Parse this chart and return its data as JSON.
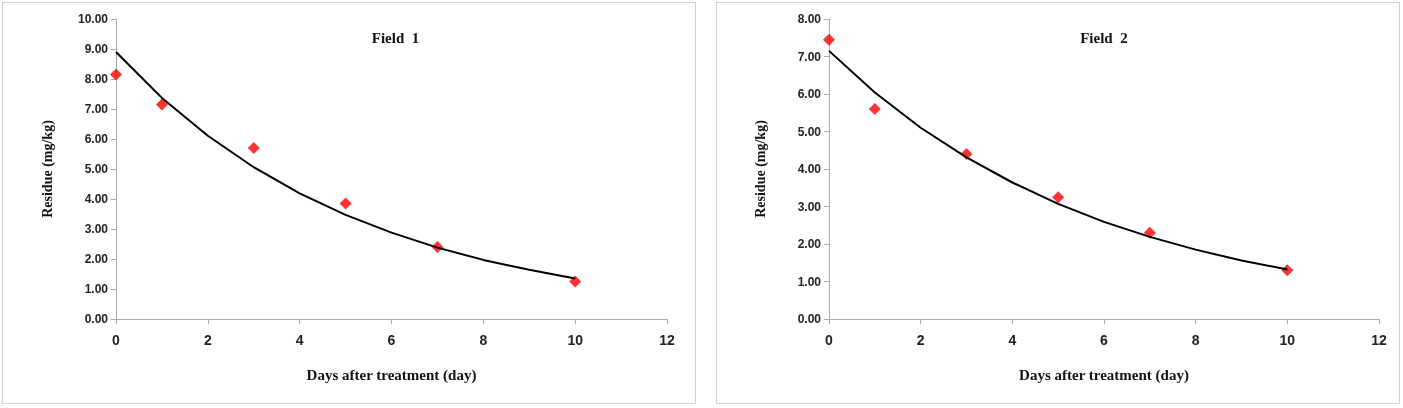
{
  "chart_data": [
    {
      "type": "scatter",
      "title": "Field  1",
      "xlabel": "Days after treatment (day)",
      "ylabel": "Residue (mg/kg)",
      "xlim": [
        0,
        12
      ],
      "xticks": [
        0,
        2,
        4,
        6,
        8,
        10,
        12
      ],
      "ylim": [
        0,
        10
      ],
      "yticks": [
        {
          "value": 0,
          "label": "0.00"
        },
        {
          "value": 1,
          "label": "1.00"
        },
        {
          "value": 2,
          "label": "2.00"
        },
        {
          "value": 3,
          "label": "3.00"
        },
        {
          "value": 4,
          "label": "4.00"
        },
        {
          "value": 5,
          "label": "5.00"
        },
        {
          "value": 6,
          "label": "6.00"
        },
        {
          "value": 7,
          "label": "7.00"
        },
        {
          "value": 8,
          "label": "8.00"
        },
        {
          "value": 9,
          "label": "9.00"
        },
        {
          "value": 10,
          "label": "10.00"
        }
      ],
      "grid": false,
      "series": [
        {
          "color": "#ff0000",
          "marker": "diamond",
          "x": [
            0,
            1,
            3,
            5,
            7,
            10
          ],
          "values": [
            8.15,
            7.15,
            5.7,
            3.85,
            2.4,
            1.25
          ]
        },
        {
          "type": "line",
          "color": "#000000",
          "marker": "none",
          "x": [
            0,
            1,
            2,
            3,
            4,
            5,
            6,
            7,
            8,
            9,
            10
          ],
          "values": [
            8.9,
            7.37,
            6.11,
            5.06,
            4.19,
            3.47,
            2.88,
            2.38,
            1.97,
            1.64,
            1.35
          ]
        }
      ]
    },
    {
      "type": "scatter",
      "title": "Field  2",
      "xlabel": "Days after treatment (day)",
      "ylabel": "Residue (mg/kg)",
      "xlim": [
        0,
        12
      ],
      "xticks": [
        0,
        2,
        4,
        6,
        8,
        10,
        12
      ],
      "ylim": [
        0,
        8
      ],
      "yticks": [
        {
          "value": 0,
          "label": "0.00"
        },
        {
          "value": 1,
          "label": "1.00"
        },
        {
          "value": 2,
          "label": "2.00"
        },
        {
          "value": 3,
          "label": "3.00"
        },
        {
          "value": 4,
          "label": "4.00"
        },
        {
          "value": 5,
          "label": "5.00"
        },
        {
          "value": 6,
          "label": "6.00"
        },
        {
          "value": 7,
          "label": "7.00"
        },
        {
          "value": 8,
          "label": "8.00"
        }
      ],
      "grid": false,
      "series": [
        {
          "color": "#ff0000",
          "marker": "diamond",
          "x": [
            0,
            1,
            3,
            5,
            7,
            10
          ],
          "values": [
            7.45,
            5.6,
            4.4,
            3.25,
            2.3,
            1.3
          ]
        },
        {
          "type": "line",
          "color": "#000000",
          "marker": "none",
          "x": [
            0,
            1,
            2,
            3,
            4,
            5,
            6,
            7,
            8,
            9,
            10
          ],
          "values": [
            7.15,
            6.04,
            5.1,
            4.31,
            3.64,
            3.07,
            2.59,
            2.19,
            1.85,
            1.56,
            1.32
          ]
        }
      ]
    }
  ]
}
